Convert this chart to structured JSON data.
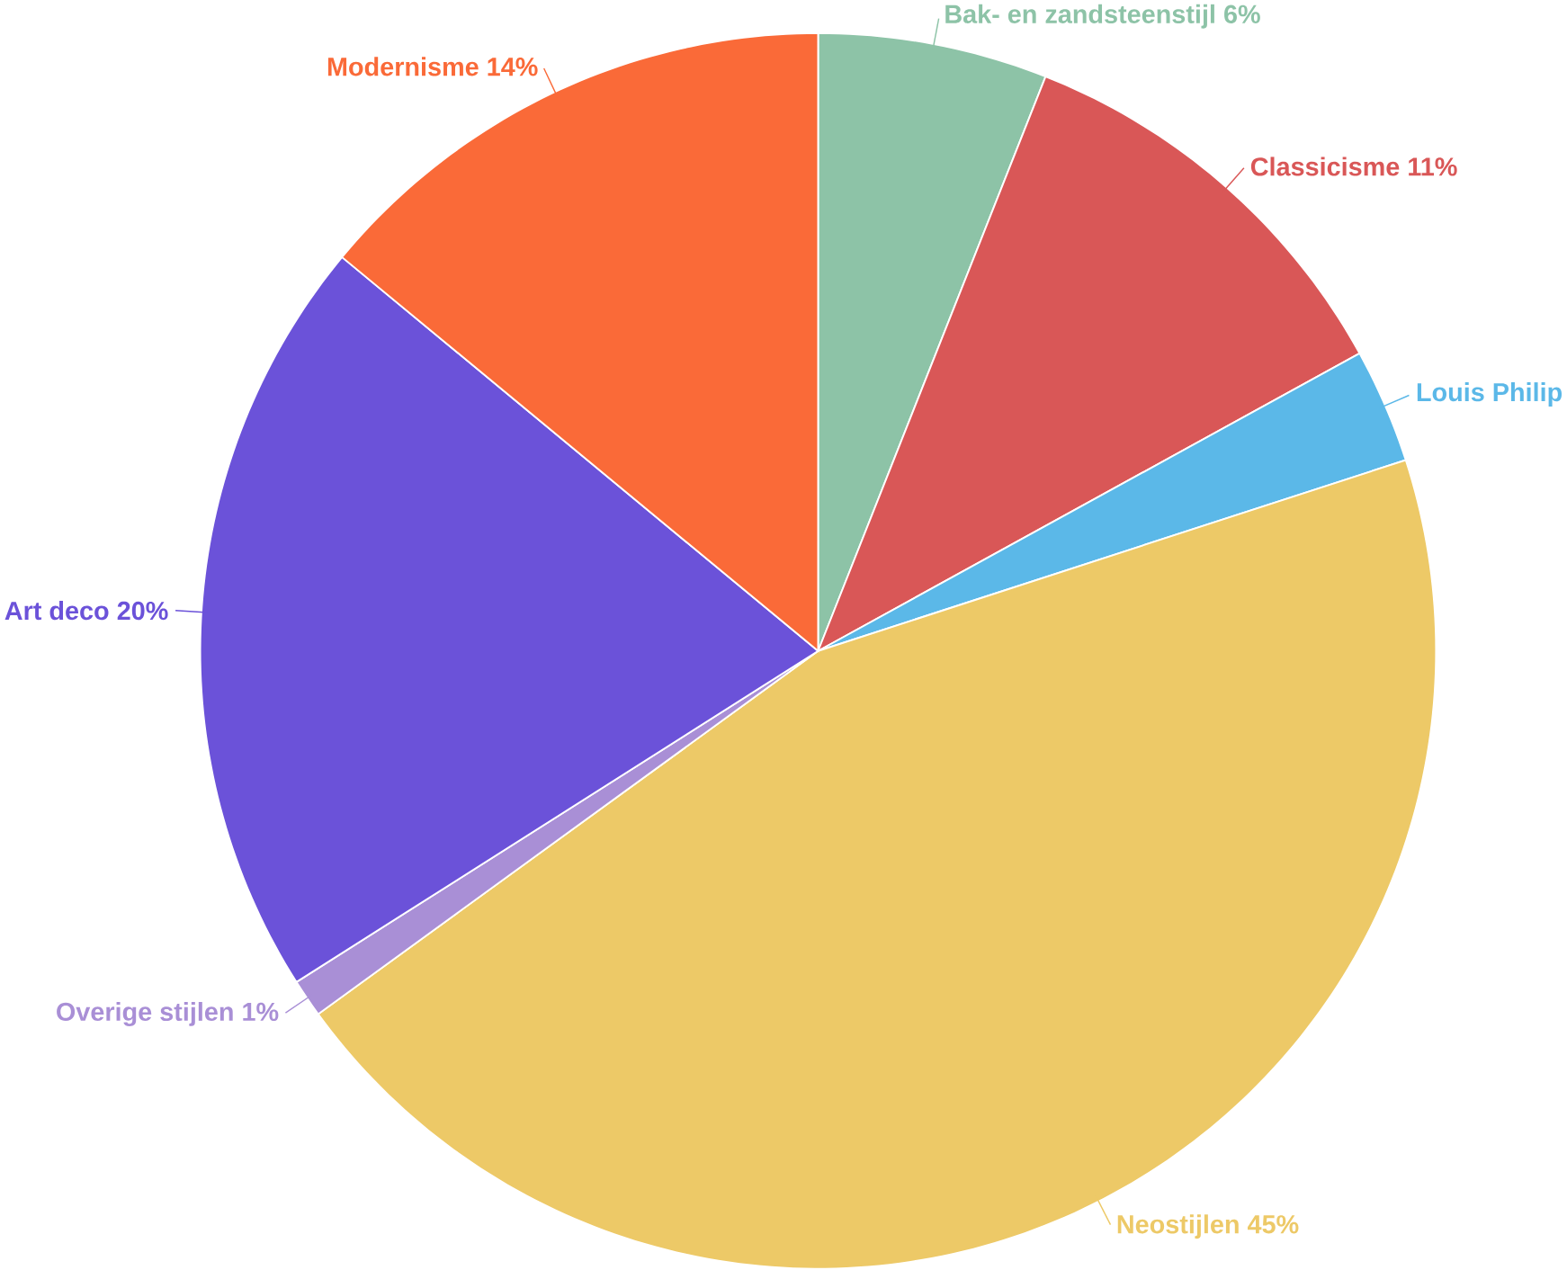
{
  "chart_data": {
    "type": "pie",
    "categories": [
      "Bak- en zandsteenstijl",
      "Classicisme",
      "Louis Philip",
      "Neostijlen",
      "Overige stijlen",
      "Art deco",
      "Modernisme"
    ],
    "values": [
      6,
      11,
      3,
      45,
      1,
      20,
      14
    ],
    "value_labels": [
      "6%",
      "11%",
      null,
      "45%",
      "1%",
      "20%",
      "14%"
    ],
    "colors": [
      "#8dc3a7",
      "#d95757",
      "#5bb8e8",
      "#edc967",
      "#a98fd6",
      "#6b52d9",
      "#fa6a38"
    ]
  }
}
